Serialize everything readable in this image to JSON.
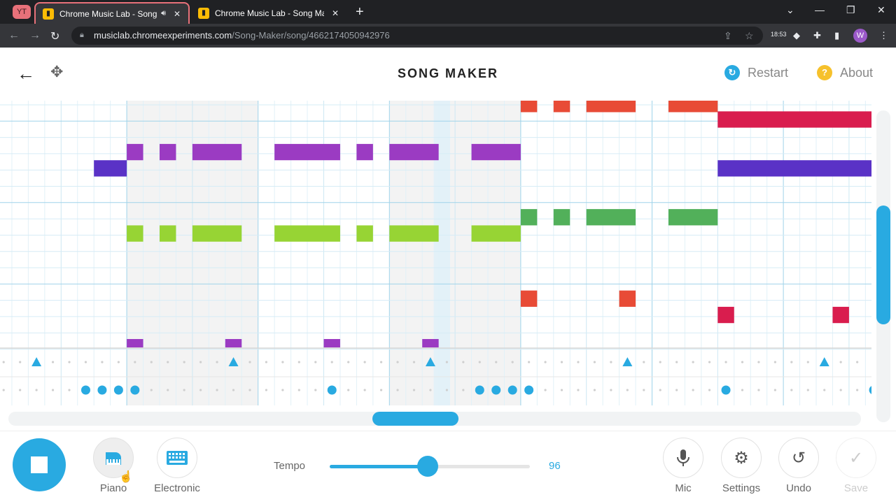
{
  "browser": {
    "yt_badge": "YT",
    "tabs": [
      {
        "title": "Chrome Music Lab - Song M",
        "audio_icon": "speaker-icon",
        "close": "✕"
      },
      {
        "title": "Chrome Music Lab - Song Maker",
        "close": "✕"
      }
    ],
    "new_tab": "+",
    "url_host": "musiclab.chromeexperiments.com",
    "url_path": "/Song-Maker/song/4662174050942976",
    "ext_badge_time": "18:53",
    "profile_initial": "W"
  },
  "app": {
    "title": "SONG MAKER",
    "restart_label": "Restart",
    "about_label": "About",
    "instruments": [
      {
        "label": "Piano",
        "icon": "piano-icon"
      },
      {
        "label": "Electronic",
        "icon": "keyboard-icon"
      }
    ],
    "tempo_label": "Tempo",
    "tempo_value": "96",
    "tempo_fraction": 0.49,
    "actions": [
      {
        "label": "Mic",
        "icon": "mic-icon"
      },
      {
        "label": "Settings",
        "icon": "gear-icon"
      },
      {
        "label": "Undo",
        "icon": "undo-icon"
      },
      {
        "label": "Save",
        "icon": "check-icon"
      }
    ],
    "colors": {
      "accent": "#29aae1",
      "restart": "#29aae1",
      "about": "#f6c12c",
      "purple": "#9b3bc2",
      "indigo": "#5a32c6",
      "lime": "#97d434",
      "green": "#52b05a",
      "red": "#e84b36",
      "crimson": "#d91d4e"
    }
  }
}
